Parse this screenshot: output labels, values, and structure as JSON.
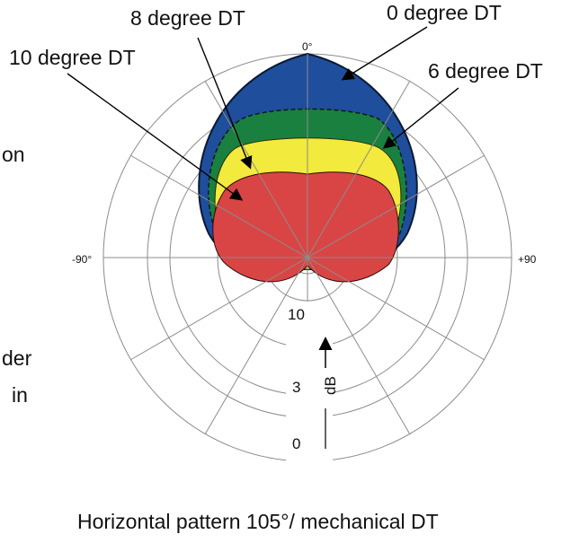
{
  "labels": {
    "dt8": "8 degree DT",
    "dt0": "0 degree DT",
    "dt10": "10 degree DT",
    "dt6": "6 degree DT"
  },
  "angles": {
    "top": "0°",
    "left": "-90°",
    "right": "+90"
  },
  "scale": {
    "db10": "10",
    "db3": "3",
    "db0": "0",
    "unit": "dB"
  },
  "fragments": {
    "on": "on",
    "der": "der",
    "in": "in"
  },
  "caption": "Horizontal pattern 105°/ mechanical DT",
  "colors": {
    "dt0": "#1f4e9c",
    "dt6": "#1a8040",
    "dt8": "#f2ea3c",
    "dt10": "#d94545",
    "grid": "#8c8c8c"
  }
}
